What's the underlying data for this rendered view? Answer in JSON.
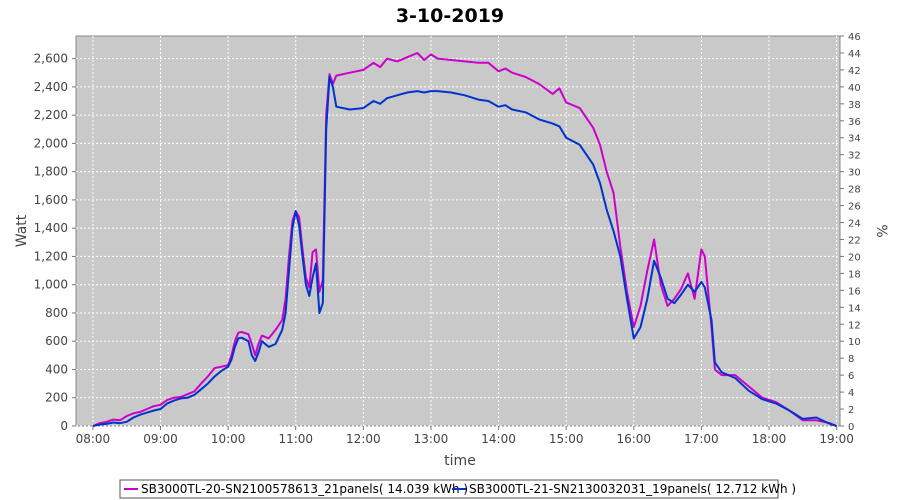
{
  "chart_data": {
    "type": "line",
    "title": "3-10-2019",
    "xlabel": "time",
    "ylabel": "Watt",
    "y2label": "%",
    "xlim": [
      7.75,
      19.05
    ],
    "ylim": [
      0,
      2760
    ],
    "y2lim": [
      0,
      46
    ],
    "grid": true,
    "legend_position": "bottom",
    "x_ticks": [
      {
        "value": 8,
        "label": "08:00"
      },
      {
        "value": 9,
        "label": "09:00"
      },
      {
        "value": 10,
        "label": "10:00"
      },
      {
        "value": 11,
        "label": "11:00"
      },
      {
        "value": 12,
        "label": "12:00"
      },
      {
        "value": 13,
        "label": "13:00"
      },
      {
        "value": 14,
        "label": "14:00"
      },
      {
        "value": 15,
        "label": "15:00"
      },
      {
        "value": 16,
        "label": "16:00"
      },
      {
        "value": 17,
        "label": "17:00"
      },
      {
        "value": 18,
        "label": "18:00"
      },
      {
        "value": 19,
        "label": "19:00"
      }
    ],
    "y_ticks": [
      {
        "value": 0,
        "label": "0"
      },
      {
        "value": 200,
        "label": "200"
      },
      {
        "value": 400,
        "label": "400"
      },
      {
        "value": 600,
        "label": "600"
      },
      {
        "value": 800,
        "label": "800"
      },
      {
        "value": 1000,
        "label": "1,000"
      },
      {
        "value": 1200,
        "label": "1,200"
      },
      {
        "value": 1400,
        "label": "1,400"
      },
      {
        "value": 1600,
        "label": "1,600"
      },
      {
        "value": 1800,
        "label": "1,800"
      },
      {
        "value": 2000,
        "label": "2,000"
      },
      {
        "value": 2200,
        "label": "2,200"
      },
      {
        "value": 2400,
        "label": "2,400"
      },
      {
        "value": 2600,
        "label": "2,600"
      }
    ],
    "y2_ticks": [
      0,
      2,
      4,
      6,
      8,
      10,
      12,
      14,
      16,
      18,
      20,
      22,
      24,
      26,
      28,
      30,
      32,
      34,
      36,
      38,
      40,
      42,
      44,
      46
    ],
    "series": [
      {
        "name": "SB3000TL-20-SN2100578613_21panels( 14.039 kWh )",
        "color": "#cc00cc",
        "points": [
          [
            8.0,
            0
          ],
          [
            8.1,
            20
          ],
          [
            8.2,
            30
          ],
          [
            8.3,
            45
          ],
          [
            8.4,
            40
          ],
          [
            8.5,
            70
          ],
          [
            8.6,
            90
          ],
          [
            8.7,
            100
          ],
          [
            8.8,
            120
          ],
          [
            8.9,
            140
          ],
          [
            9.0,
            150
          ],
          [
            9.1,
            185
          ],
          [
            9.2,
            200
          ],
          [
            9.3,
            205
          ],
          [
            9.4,
            225
          ],
          [
            9.5,
            245
          ],
          [
            9.6,
            300
          ],
          [
            9.7,
            350
          ],
          [
            9.8,
            410
          ],
          [
            9.9,
            420
          ],
          [
            10.0,
            430
          ],
          [
            10.05,
            500
          ],
          [
            10.1,
            600
          ],
          [
            10.15,
            660
          ],
          [
            10.2,
            665
          ],
          [
            10.3,
            650
          ],
          [
            10.35,
            580
          ],
          [
            10.4,
            500
          ],
          [
            10.45,
            580
          ],
          [
            10.5,
            640
          ],
          [
            10.6,
            620
          ],
          [
            10.7,
            680
          ],
          [
            10.8,
            750
          ],
          [
            10.85,
            900
          ],
          [
            10.9,
            1200
          ],
          [
            10.95,
            1450
          ],
          [
            11.0,
            1520
          ],
          [
            11.05,
            1480
          ],
          [
            11.1,
            1250
          ],
          [
            11.15,
            1050
          ],
          [
            11.2,
            980
          ],
          [
            11.25,
            1230
          ],
          [
            11.3,
            1250
          ],
          [
            11.35,
            950
          ],
          [
            11.4,
            1030
          ],
          [
            11.45,
            2200
          ],
          [
            11.5,
            2490
          ],
          [
            11.55,
            2420
          ],
          [
            11.6,
            2480
          ],
          [
            11.8,
            2500
          ],
          [
            12.0,
            2520
          ],
          [
            12.15,
            2570
          ],
          [
            12.25,
            2540
          ],
          [
            12.35,
            2600
          ],
          [
            12.5,
            2580
          ],
          [
            12.65,
            2610
          ],
          [
            12.8,
            2640
          ],
          [
            12.9,
            2590
          ],
          [
            13.0,
            2630
          ],
          [
            13.1,
            2600
          ],
          [
            13.3,
            2590
          ],
          [
            13.5,
            2580
          ],
          [
            13.7,
            2570
          ],
          [
            13.85,
            2570
          ],
          [
            14.0,
            2510
          ],
          [
            14.1,
            2530
          ],
          [
            14.2,
            2500
          ],
          [
            14.4,
            2470
          ],
          [
            14.6,
            2420
          ],
          [
            14.8,
            2350
          ],
          [
            14.9,
            2390
          ],
          [
            15.0,
            2290
          ],
          [
            15.2,
            2250
          ],
          [
            15.4,
            2110
          ],
          [
            15.5,
            1990
          ],
          [
            15.6,
            1800
          ],
          [
            15.7,
            1650
          ],
          [
            15.8,
            1270
          ],
          [
            15.9,
            950
          ],
          [
            16.0,
            700
          ],
          [
            16.1,
            850
          ],
          [
            16.2,
            1100
          ],
          [
            16.3,
            1320
          ],
          [
            16.4,
            1000
          ],
          [
            16.5,
            850
          ],
          [
            16.6,
            900
          ],
          [
            16.7,
            970
          ],
          [
            16.8,
            1080
          ],
          [
            16.9,
            900
          ],
          [
            17.0,
            1250
          ],
          [
            17.05,
            1200
          ],
          [
            17.15,
            700
          ],
          [
            17.2,
            400
          ],
          [
            17.3,
            360
          ],
          [
            17.5,
            360
          ],
          [
            17.7,
            280
          ],
          [
            17.9,
            200
          ],
          [
            18.1,
            170
          ],
          [
            18.3,
            110
          ],
          [
            18.5,
            40
          ],
          [
            18.7,
            40
          ],
          [
            18.9,
            20
          ],
          [
            19.0,
            0
          ]
        ]
      },
      {
        "name": "SB3000TL-21-SN2130032031_19panels( 12.712 kWh )",
        "color": "#0033cc",
        "points": [
          [
            8.0,
            0
          ],
          [
            8.1,
            10
          ],
          [
            8.2,
            15
          ],
          [
            8.3,
            25
          ],
          [
            8.4,
            20
          ],
          [
            8.5,
            30
          ],
          [
            8.6,
            60
          ],
          [
            8.7,
            80
          ],
          [
            8.8,
            95
          ],
          [
            8.9,
            110
          ],
          [
            9.0,
            120
          ],
          [
            9.1,
            160
          ],
          [
            9.2,
            180
          ],
          [
            9.3,
            195
          ],
          [
            9.4,
            200
          ],
          [
            9.5,
            220
          ],
          [
            9.6,
            260
          ],
          [
            9.7,
            300
          ],
          [
            9.8,
            350
          ],
          [
            9.9,
            390
          ],
          [
            10.0,
            420
          ],
          [
            10.05,
            470
          ],
          [
            10.1,
            560
          ],
          [
            10.15,
            620
          ],
          [
            10.2,
            625
          ],
          [
            10.3,
            600
          ],
          [
            10.35,
            500
          ],
          [
            10.4,
            460
          ],
          [
            10.45,
            520
          ],
          [
            10.5,
            600
          ],
          [
            10.6,
            560
          ],
          [
            10.7,
            580
          ],
          [
            10.8,
            680
          ],
          [
            10.85,
            800
          ],
          [
            10.9,
            1100
          ],
          [
            10.95,
            1400
          ],
          [
            11.0,
            1520
          ],
          [
            11.05,
            1420
          ],
          [
            11.1,
            1200
          ],
          [
            11.15,
            1000
          ],
          [
            11.2,
            920
          ],
          [
            11.25,
            1050
          ],
          [
            11.3,
            1150
          ],
          [
            11.35,
            800
          ],
          [
            11.4,
            870
          ],
          [
            11.45,
            2100
          ],
          [
            11.5,
            2470
          ],
          [
            11.55,
            2400
          ],
          [
            11.6,
            2260
          ],
          [
            11.8,
            2240
          ],
          [
            12.0,
            2250
          ],
          [
            12.15,
            2300
          ],
          [
            12.25,
            2280
          ],
          [
            12.35,
            2320
          ],
          [
            12.5,
            2340
          ],
          [
            12.65,
            2360
          ],
          [
            12.8,
            2370
          ],
          [
            12.9,
            2360
          ],
          [
            13.0,
            2370
          ],
          [
            13.1,
            2370
          ],
          [
            13.3,
            2360
          ],
          [
            13.5,
            2340
          ],
          [
            13.7,
            2310
          ],
          [
            13.85,
            2300
          ],
          [
            14.0,
            2260
          ],
          [
            14.1,
            2270
          ],
          [
            14.2,
            2240
          ],
          [
            14.4,
            2220
          ],
          [
            14.6,
            2170
          ],
          [
            14.8,
            2140
          ],
          [
            14.9,
            2120
          ],
          [
            15.0,
            2040
          ],
          [
            15.2,
            1990
          ],
          [
            15.4,
            1850
          ],
          [
            15.5,
            1720
          ],
          [
            15.6,
            1530
          ],
          [
            15.7,
            1380
          ],
          [
            15.8,
            1200
          ],
          [
            15.9,
            900
          ],
          [
            16.0,
            620
          ],
          [
            16.1,
            700
          ],
          [
            16.2,
            900
          ],
          [
            16.3,
            1170
          ],
          [
            16.4,
            1050
          ],
          [
            16.5,
            900
          ],
          [
            16.6,
            870
          ],
          [
            16.7,
            930
          ],
          [
            16.8,
            1000
          ],
          [
            16.9,
            950
          ],
          [
            17.0,
            1020
          ],
          [
            17.05,
            980
          ],
          [
            17.15,
            750
          ],
          [
            17.2,
            450
          ],
          [
            17.3,
            380
          ],
          [
            17.5,
            340
          ],
          [
            17.7,
            250
          ],
          [
            17.9,
            190
          ],
          [
            18.1,
            160
          ],
          [
            18.3,
            110
          ],
          [
            18.5,
            50
          ],
          [
            18.7,
            60
          ],
          [
            18.9,
            15
          ],
          [
            19.0,
            0
          ]
        ]
      }
    ]
  }
}
